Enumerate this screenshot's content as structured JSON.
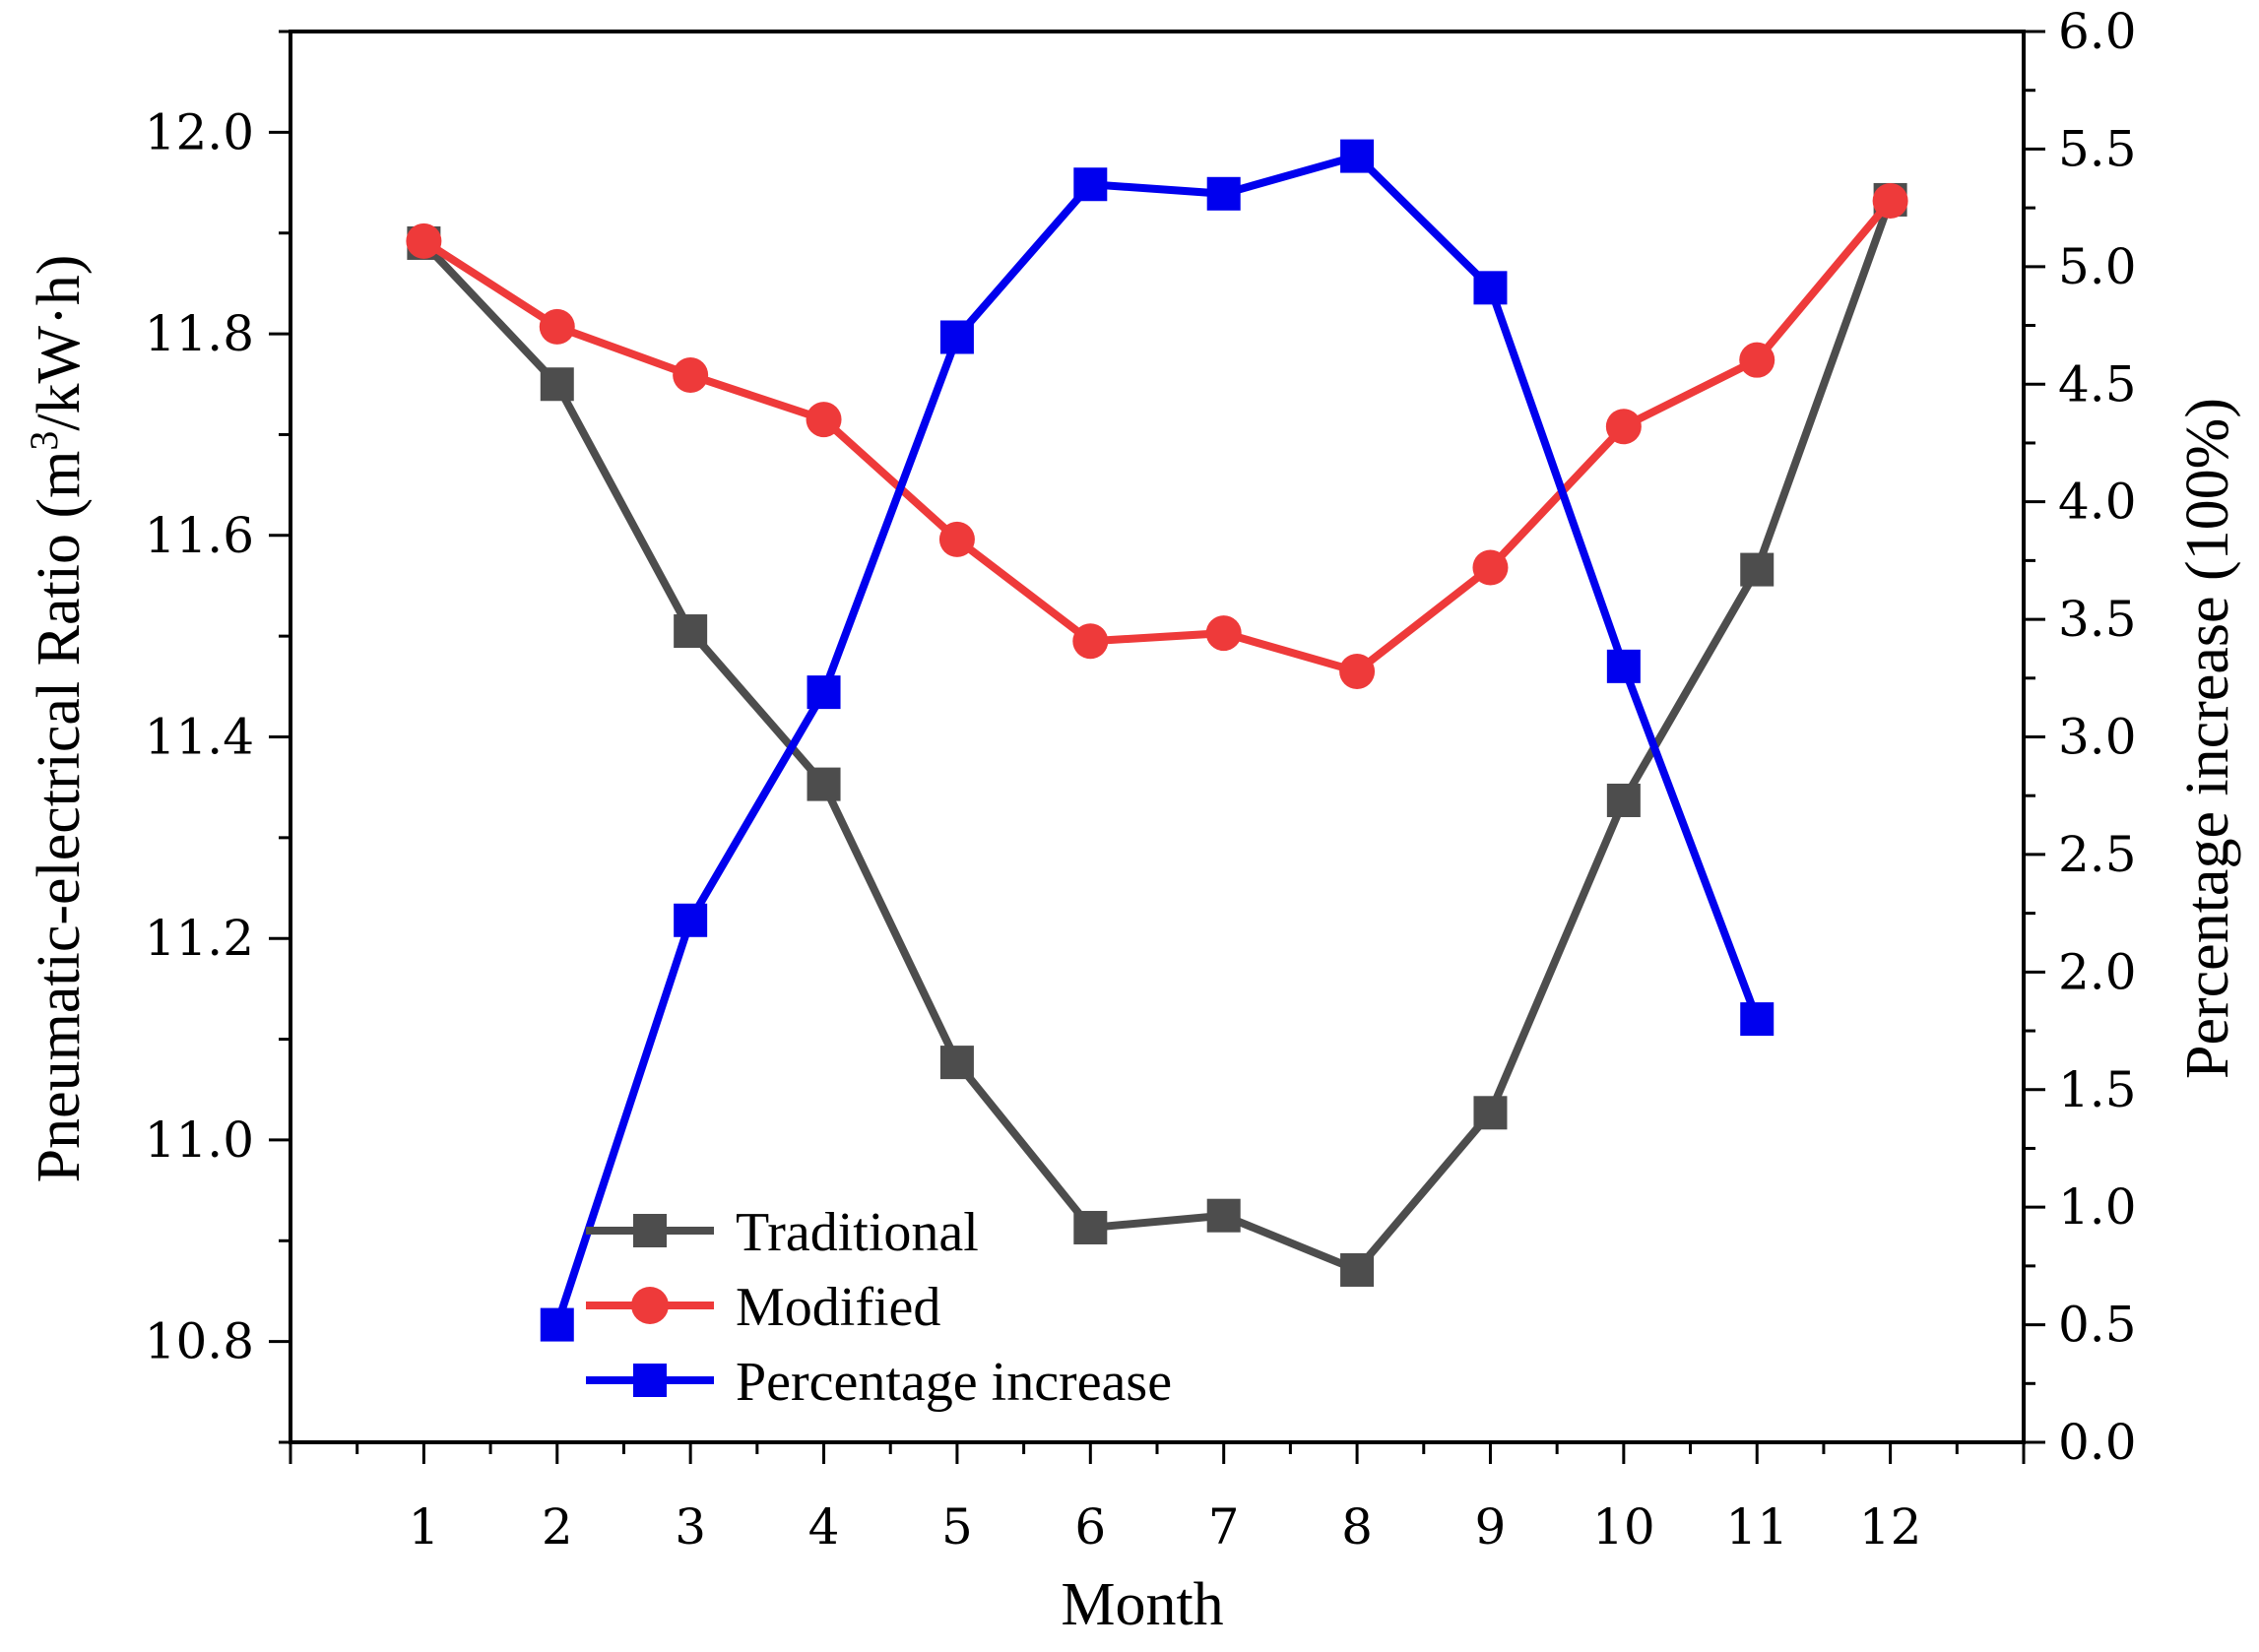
{
  "chart_data": {
    "type": "line",
    "xlabel": "Month",
    "ylabel_left_pre": "Pneumatic-electrical Ratio (m",
    "ylabel_left_sup": "3",
    "ylabel_left_post": "/kW·h)",
    "ylabel_right": "Percentage increase (100%)",
    "x": [
      1,
      2,
      3,
      4,
      5,
      6,
      7,
      8,
      9,
      10,
      11,
      12
    ],
    "x_ticks": [
      "1",
      "2",
      "3",
      "4",
      "5",
      "6",
      "7",
      "8",
      "9",
      "10",
      "11",
      "12"
    ],
    "xlim": [
      0,
      13
    ],
    "ylim_left": [
      10.7,
      12.1
    ],
    "ylim_right": [
      0.0,
      6.0
    ],
    "left_ticks": [
      "10.8",
      "11.0",
      "11.2",
      "11.4",
      "11.6",
      "11.8",
      "12.0"
    ],
    "right_ticks": [
      "0.0",
      "0.5",
      "1.0",
      "1.5",
      "2.0",
      "2.5",
      "3.0",
      "3.5",
      "4.0",
      "4.5",
      "5.0",
      "5.5",
      "6.0"
    ],
    "series": [
      {
        "name": "Traditional",
        "axis": "left",
        "marker": "square",
        "color": "#4d4d4d",
        "x": [
          1,
          2,
          3,
          4,
          5,
          6,
          7,
          8,
          9,
          10,
          11,
          12
        ],
        "values": [
          11.89,
          11.75,
          11.505,
          11.353,
          11.077,
          10.913,
          10.925,
          10.871,
          11.027,
          11.337,
          11.566,
          11.933
        ]
      },
      {
        "name": "Modified",
        "axis": "left",
        "marker": "circle",
        "color": "#ee3a3a",
        "x": [
          1,
          2,
          3,
          4,
          5,
          6,
          7,
          8,
          9,
          10,
          11,
          12
        ],
        "values": [
          11.892,
          11.807,
          11.759,
          11.715,
          11.596,
          11.495,
          11.503,
          11.465,
          11.568,
          11.708,
          11.774,
          11.932
        ]
      },
      {
        "name": "Percentage increase",
        "axis": "right",
        "marker": "square",
        "color": "#0000ee",
        "x": [
          2,
          3,
          4,
          5,
          6,
          7,
          8,
          9,
          10,
          11
        ],
        "values": [
          0.5,
          2.22,
          3.19,
          4.7,
          5.35,
          5.31,
          5.47,
          4.91,
          3.3,
          1.8
        ]
      }
    ],
    "legend_position": "bottom-left"
  }
}
